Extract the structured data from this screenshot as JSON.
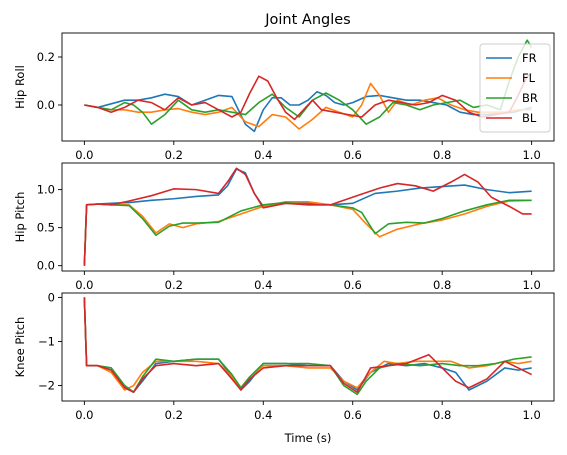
{
  "colors": {
    "FR": "#1f77b4",
    "FL": "#ff7f0e",
    "BR": "#2ca02c",
    "BL": "#d62728"
  },
  "chart_data": [
    {
      "type": "line",
      "title": "Joint Angles",
      "ylabel": "Hip Roll",
      "xlabel": "",
      "xlim": [
        -0.05,
        1.05
      ],
      "ylim": [
        -0.15,
        0.3
      ],
      "xticks": [
        0.0,
        0.2,
        0.4,
        0.6,
        0.8,
        1.0
      ],
      "yticks": [
        0.0,
        0.2
      ],
      "ytick_labels": [
        "0.0",
        "0.2"
      ],
      "xtick_labels": [
        "0.0",
        "0.2",
        "0.4",
        "0.6",
        "0.8",
        "1.0"
      ],
      "legend": {
        "placement": "upper right",
        "entries": [
          "FR",
          "FL",
          "BR",
          "BL"
        ]
      },
      "series": [
        {
          "name": "FR",
          "x": [
            0,
            0.03,
            0.06,
            0.09,
            0.12,
            0.15,
            0.18,
            0.21,
            0.24,
            0.27,
            0.3,
            0.33,
            0.36,
            0.38,
            0.4,
            0.42,
            0.44,
            0.46,
            0.48,
            0.5,
            0.52,
            0.54,
            0.56,
            0.58,
            0.6,
            0.63,
            0.66,
            0.69,
            0.72,
            0.75,
            0.78,
            0.81,
            0.84,
            0.87,
            0.9,
            0.93,
            0.96,
            0.98,
            1.0
          ],
          "y": [
            0,
            -0.01,
            0.005,
            0.02,
            0.02,
            0.03,
            0.045,
            0.035,
            0.0,
            0.02,
            0.04,
            0.035,
            -0.08,
            -0.11,
            -0.02,
            0.03,
            0.03,
            0.0,
            0.0,
            0.02,
            0.055,
            0.04,
            0.01,
            0.0,
            0.01,
            0.035,
            0.04,
            0.03,
            0.02,
            0.02,
            0.01,
            0.0,
            -0.03,
            -0.04,
            -0.04,
            -0.035,
            -0.03,
            -0.02,
            -0.01
          ]
        },
        {
          "name": "FL",
          "x": [
            0,
            0.03,
            0.06,
            0.09,
            0.12,
            0.15,
            0.18,
            0.21,
            0.24,
            0.27,
            0.3,
            0.33,
            0.36,
            0.39,
            0.42,
            0.45,
            0.48,
            0.51,
            0.54,
            0.57,
            0.6,
            0.62,
            0.64,
            0.66,
            0.68,
            0.7,
            0.73,
            0.76,
            0.79,
            0.82,
            0.85,
            0.88,
            0.91,
            0.94,
            0.97,
            1.0
          ],
          "y": [
            0,
            -0.01,
            -0.02,
            -0.02,
            -0.03,
            -0.03,
            -0.02,
            -0.015,
            -0.03,
            -0.04,
            -0.03,
            -0.01,
            -0.07,
            -0.09,
            -0.04,
            -0.05,
            -0.1,
            -0.06,
            -0.01,
            -0.03,
            -0.05,
            0.0,
            0.09,
            0.04,
            -0.03,
            0.02,
            0.0,
            0.02,
            0.03,
            0.0,
            -0.02,
            -0.03,
            -0.03,
            -0.03,
            -0.02,
            -0.02
          ]
        },
        {
          "name": "BR",
          "x": [
            0,
            0.03,
            0.06,
            0.09,
            0.11,
            0.13,
            0.15,
            0.18,
            0.21,
            0.24,
            0.27,
            0.3,
            0.33,
            0.36,
            0.39,
            0.42,
            0.45,
            0.48,
            0.51,
            0.54,
            0.57,
            0.6,
            0.63,
            0.66,
            0.69,
            0.72,
            0.75,
            0.78,
            0.81,
            0.84,
            0.87,
            0.9,
            0.93,
            0.95,
            0.97,
            0.99,
            1.0
          ],
          "y": [
            0,
            -0.01,
            -0.02,
            0.01,
            0.0,
            -0.03,
            -0.08,
            -0.04,
            0.02,
            -0.02,
            -0.03,
            -0.02,
            -0.03,
            -0.04,
            0.01,
            0.045,
            -0.01,
            -0.05,
            0.02,
            0.05,
            0.02,
            -0.02,
            -0.08,
            -0.05,
            0.01,
            0.0,
            -0.02,
            0.0,
            0.01,
            0.02,
            -0.01,
            0.0,
            -0.02,
            0.1,
            0.2,
            0.27,
            0.24
          ]
        },
        {
          "name": "BL",
          "x": [
            0,
            0.03,
            0.06,
            0.09,
            0.12,
            0.15,
            0.18,
            0.21,
            0.24,
            0.27,
            0.3,
            0.33,
            0.35,
            0.37,
            0.39,
            0.41,
            0.43,
            0.45,
            0.47,
            0.49,
            0.51,
            0.53,
            0.56,
            0.59,
            0.62,
            0.65,
            0.68,
            0.71,
            0.74,
            0.77,
            0.8,
            0.83,
            0.86,
            0.89,
            0.92,
            0.95,
            0.97,
            0.99,
            1.0
          ],
          "y": [
            0,
            -0.01,
            -0.03,
            -0.01,
            0.02,
            0.01,
            -0.02,
            0.03,
            0.0,
            0.01,
            -0.02,
            -0.05,
            -0.03,
            0.05,
            0.12,
            0.1,
            0.03,
            -0.03,
            -0.06,
            -0.02,
            0.02,
            -0.02,
            -0.03,
            -0.04,
            -0.05,
            0.0,
            0.02,
            0.01,
            0.0,
            0.01,
            0.04,
            0.02,
            -0.03,
            -0.05,
            -0.04,
            -0.03,
            0.04,
            0.12,
            0.13
          ]
        }
      ]
    },
    {
      "type": "line",
      "title": "",
      "ylabel": "Hip Pitch",
      "xlabel": "",
      "xlim": [
        -0.05,
        1.05
      ],
      "ylim": [
        -0.07,
        1.35
      ],
      "xticks": [
        0.0,
        0.2,
        0.4,
        0.6,
        0.8,
        1.0
      ],
      "yticks": [
        0.0,
        0.5,
        1.0
      ],
      "ytick_labels": [
        "0.0",
        "0.5",
        "1.0"
      ],
      "xtick_labels": [
        "0.0",
        "0.2",
        "0.4",
        "0.6",
        "0.8",
        "1.0"
      ],
      "series": [
        {
          "name": "FR",
          "x": [
            0,
            0.005,
            0.03,
            0.06,
            0.1,
            0.15,
            0.2,
            0.25,
            0.3,
            0.32,
            0.34,
            0.36,
            0.38,
            0.4,
            0.45,
            0.5,
            0.55,
            0.6,
            0.65,
            0.7,
            0.75,
            0.8,
            0.85,
            0.9,
            0.95,
            1.0
          ],
          "y": [
            0,
            0.8,
            0.81,
            0.82,
            0.83,
            0.86,
            0.88,
            0.91,
            0.93,
            1.05,
            1.27,
            1.22,
            0.95,
            0.78,
            0.82,
            0.82,
            0.8,
            0.82,
            0.95,
            0.98,
            1.02,
            1.04,
            1.06,
            1.0,
            0.96,
            0.98
          ]
        },
        {
          "name": "FL",
          "x": [
            0,
            0.005,
            0.03,
            0.06,
            0.1,
            0.13,
            0.16,
            0.19,
            0.22,
            0.25,
            0.3,
            0.35,
            0.4,
            0.45,
            0.5,
            0.55,
            0.6,
            0.63,
            0.66,
            0.7,
            0.75,
            0.8,
            0.85,
            0.9,
            0.95,
            1.0
          ],
          "y": [
            0,
            0.8,
            0.81,
            0.8,
            0.8,
            0.65,
            0.43,
            0.55,
            0.5,
            0.55,
            0.58,
            0.68,
            0.78,
            0.84,
            0.84,
            0.8,
            0.74,
            0.55,
            0.38,
            0.48,
            0.55,
            0.6,
            0.68,
            0.78,
            0.85,
            0.86
          ]
        },
        {
          "name": "BR",
          "x": [
            0,
            0.005,
            0.03,
            0.06,
            0.1,
            0.13,
            0.16,
            0.19,
            0.22,
            0.25,
            0.3,
            0.35,
            0.4,
            0.45,
            0.5,
            0.55,
            0.6,
            0.62,
            0.65,
            0.68,
            0.72,
            0.76,
            0.8,
            0.85,
            0.9,
            0.95,
            1.0
          ],
          "y": [
            0,
            0.8,
            0.81,
            0.8,
            0.79,
            0.62,
            0.4,
            0.52,
            0.56,
            0.56,
            0.57,
            0.72,
            0.8,
            0.83,
            0.8,
            0.8,
            0.76,
            0.7,
            0.42,
            0.55,
            0.57,
            0.56,
            0.62,
            0.72,
            0.8,
            0.86,
            0.86
          ]
        },
        {
          "name": "BL",
          "x": [
            0,
            0.005,
            0.03,
            0.06,
            0.1,
            0.15,
            0.2,
            0.25,
            0.3,
            0.32,
            0.34,
            0.36,
            0.38,
            0.4,
            0.45,
            0.5,
            0.55,
            0.58,
            0.62,
            0.66,
            0.7,
            0.74,
            0.78,
            0.82,
            0.85,
            0.88,
            0.91,
            0.95,
            0.98,
            1.0
          ],
          "y": [
            0,
            0.8,
            0.81,
            0.8,
            0.85,
            0.92,
            1.01,
            1.0,
            0.95,
            1.1,
            1.28,
            1.2,
            0.95,
            0.76,
            0.82,
            0.8,
            0.8,
            0.86,
            0.94,
            1.02,
            1.08,
            1.05,
            0.98,
            1.1,
            1.2,
            1.1,
            0.9,
            0.78,
            0.68,
            0.68
          ]
        }
      ]
    },
    {
      "type": "line",
      "title": "",
      "ylabel": "Knee Pitch",
      "xlabel": "Time (s)",
      "xlim": [
        -0.05,
        1.05
      ],
      "ylim": [
        -2.35,
        0.1
      ],
      "xticks": [
        0.0,
        0.2,
        0.4,
        0.6,
        0.8,
        1.0
      ],
      "yticks": [
        0,
        -1,
        -2
      ],
      "ytick_labels": [
        "0",
        "−1",
        "−2"
      ],
      "xtick_labels": [
        "0.0",
        "0.2",
        "0.4",
        "0.6",
        "0.8",
        "1.0"
      ],
      "series": [
        {
          "name": "FR",
          "x": [
            0,
            0.005,
            0.03,
            0.06,
            0.09,
            0.11,
            0.13,
            0.16,
            0.2,
            0.25,
            0.3,
            0.33,
            0.35,
            0.37,
            0.4,
            0.45,
            0.5,
            0.55,
            0.58,
            0.61,
            0.64,
            0.68,
            0.72,
            0.76,
            0.8,
            0.83,
            0.86,
            0.9,
            0.94,
            0.97,
            1.0
          ],
          "y": [
            0,
            -1.55,
            -1.55,
            -1.6,
            -2.0,
            -2.15,
            -1.9,
            -1.5,
            -1.45,
            -1.4,
            -1.4,
            -1.8,
            -2.1,
            -1.9,
            -1.5,
            -1.5,
            -1.55,
            -1.55,
            -1.9,
            -2.1,
            -1.7,
            -1.5,
            -1.55,
            -1.5,
            -1.6,
            -1.7,
            -2.1,
            -1.9,
            -1.6,
            -1.65,
            -1.6
          ]
        },
        {
          "name": "FL",
          "x": [
            0,
            0.005,
            0.03,
            0.06,
            0.09,
            0.11,
            0.13,
            0.16,
            0.2,
            0.25,
            0.3,
            0.33,
            0.35,
            0.37,
            0.4,
            0.45,
            0.5,
            0.55,
            0.58,
            0.61,
            0.64,
            0.67,
            0.7,
            0.74,
            0.78,
            0.82,
            0.86,
            0.9,
            0.94,
            0.97,
            1.0
          ],
          "y": [
            0,
            -1.55,
            -1.55,
            -1.7,
            -2.1,
            -2.0,
            -1.7,
            -1.45,
            -1.45,
            -1.45,
            -1.5,
            -1.8,
            -2.05,
            -1.8,
            -1.55,
            -1.55,
            -1.6,
            -1.6,
            -1.9,
            -2.05,
            -1.7,
            -1.45,
            -1.5,
            -1.45,
            -1.45,
            -1.45,
            -1.6,
            -1.55,
            -1.45,
            -1.5,
            -1.45
          ]
        },
        {
          "name": "BR",
          "x": [
            0,
            0.005,
            0.03,
            0.06,
            0.09,
            0.11,
            0.13,
            0.16,
            0.2,
            0.25,
            0.3,
            0.33,
            0.35,
            0.37,
            0.4,
            0.45,
            0.5,
            0.55,
            0.58,
            0.61,
            0.63,
            0.66,
            0.7,
            0.75,
            0.8,
            0.84,
            0.88,
            0.92,
            0.96,
            1.0
          ],
          "y": [
            0,
            -1.55,
            -1.55,
            -1.6,
            -2.0,
            -2.15,
            -1.8,
            -1.4,
            -1.45,
            -1.4,
            -1.4,
            -1.75,
            -2.05,
            -1.8,
            -1.5,
            -1.5,
            -1.5,
            -1.55,
            -2.0,
            -2.2,
            -1.9,
            -1.6,
            -1.5,
            -1.55,
            -1.5,
            -1.55,
            -1.55,
            -1.5,
            -1.4,
            -1.35
          ]
        },
        {
          "name": "BL",
          "x": [
            0,
            0.005,
            0.03,
            0.06,
            0.09,
            0.11,
            0.13,
            0.16,
            0.2,
            0.25,
            0.3,
            0.33,
            0.35,
            0.37,
            0.4,
            0.45,
            0.5,
            0.55,
            0.58,
            0.61,
            0.64,
            0.68,
            0.72,
            0.77,
            0.8,
            0.83,
            0.86,
            0.9,
            0.94,
            0.97,
            1.0
          ],
          "y": [
            0,
            -1.55,
            -1.55,
            -1.65,
            -2.05,
            -2.15,
            -1.85,
            -1.55,
            -1.5,
            -1.55,
            -1.5,
            -1.85,
            -2.1,
            -1.85,
            -1.6,
            -1.55,
            -1.55,
            -1.55,
            -1.95,
            -2.15,
            -1.6,
            -1.55,
            -1.5,
            -1.3,
            -1.6,
            -1.9,
            -2.05,
            -1.85,
            -1.45,
            -1.6,
            -1.75
          ]
        }
      ]
    }
  ]
}
